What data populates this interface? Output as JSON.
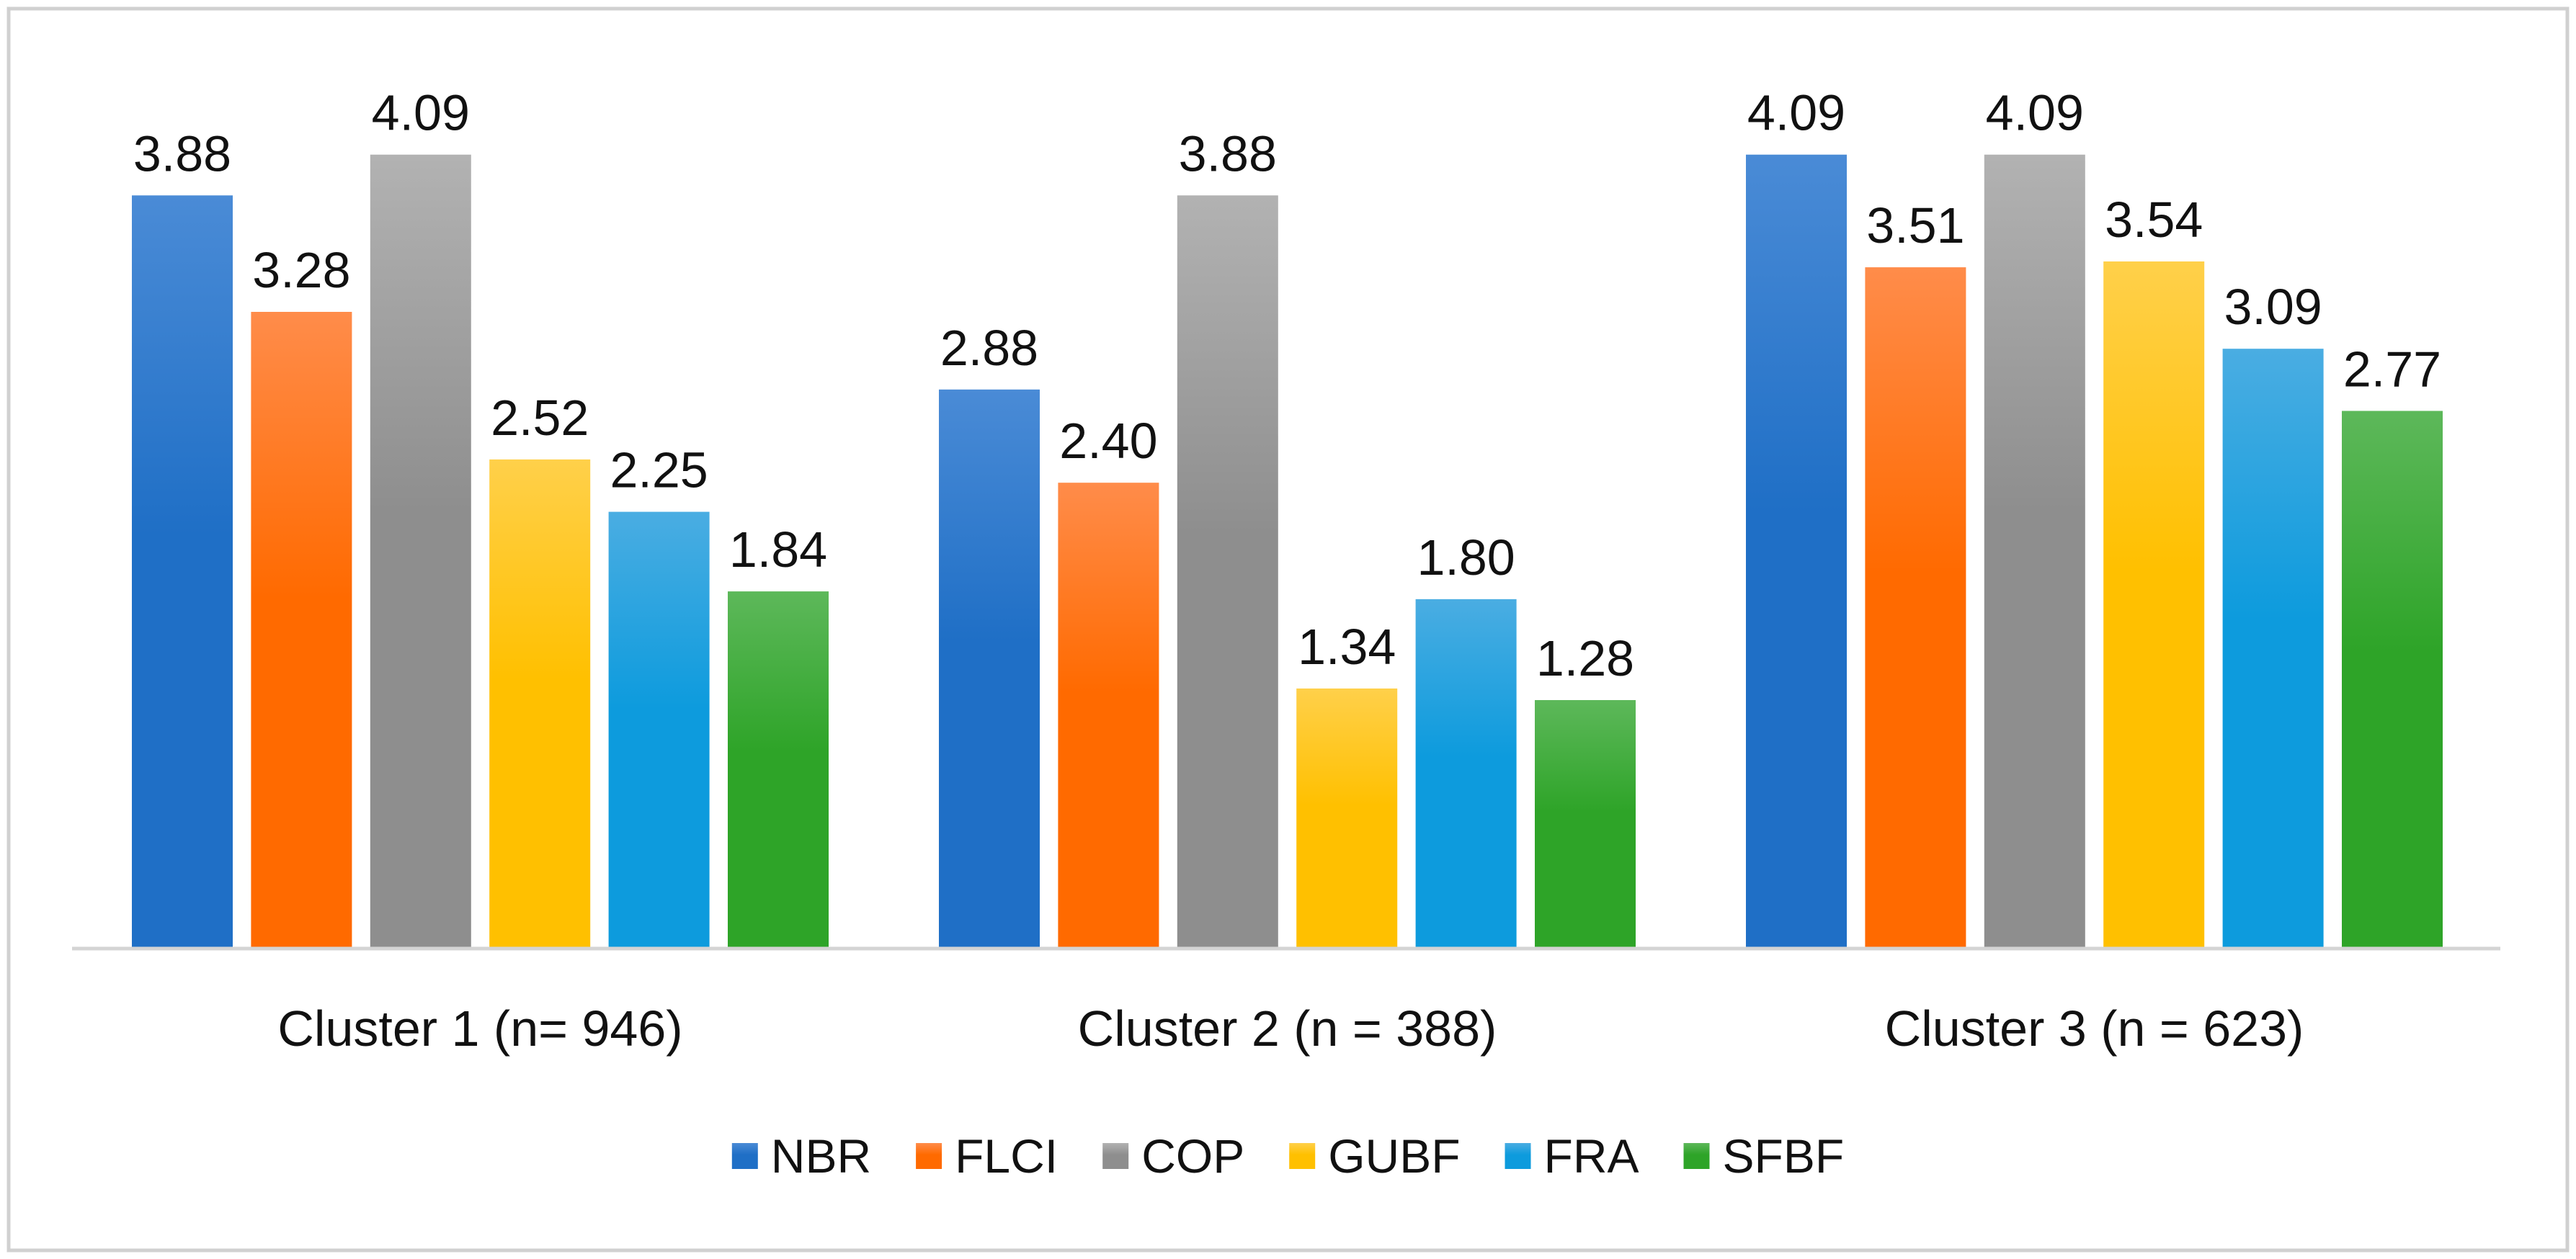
{
  "chart_data": {
    "type": "bar",
    "title": "",
    "xlabel": "",
    "ylabel": "",
    "ylim": [
      0,
      4.5
    ],
    "grid": false,
    "legend_position": "bottom",
    "categories": [
      "Cluster 1 (n= 946)",
      "Cluster 2 (n = 388)",
      "Cluster 3 (n = 623)"
    ],
    "series": [
      {
        "name": "NBR",
        "color": "#1F6FC6",
        "color_light": "#4A8BD6",
        "values": [
          3.88,
          2.88,
          4.09
        ],
        "labels": [
          "3.88",
          "2.88",
          "4.09"
        ]
      },
      {
        "name": "FLCI",
        "color": "#FF6A00",
        "color_light": "#FF8C4A",
        "values": [
          3.28,
          2.4,
          3.51
        ],
        "labels": [
          "3.28",
          "2.40",
          "3.51"
        ]
      },
      {
        "name": "COP",
        "color": "#8E8E8E",
        "color_light": "#B2B2B2",
        "values": [
          4.09,
          3.88,
          4.09
        ],
        "labels": [
          "4.09",
          "3.88",
          "4.09"
        ]
      },
      {
        "name": "GUBF",
        "color": "#FFC000",
        "color_light": "#FFD04A",
        "values": [
          2.52,
          1.34,
          3.54
        ],
        "labels": [
          "2.52",
          "1.34",
          "3.54"
        ]
      },
      {
        "name": "FRA",
        "color": "#0D9BDD",
        "color_light": "#4AADE2",
        "values": [
          2.25,
          1.8,
          3.09
        ],
        "labels": [
          "2.25",
          "1.80",
          "3.09"
        ]
      },
      {
        "name": "SFBF",
        "color": "#2EA428",
        "color_light": "#5DB85A",
        "values": [
          1.84,
          1.28,
          2.77
        ],
        "labels": [
          "1.84",
          "1.28",
          "2.77"
        ]
      }
    ]
  }
}
